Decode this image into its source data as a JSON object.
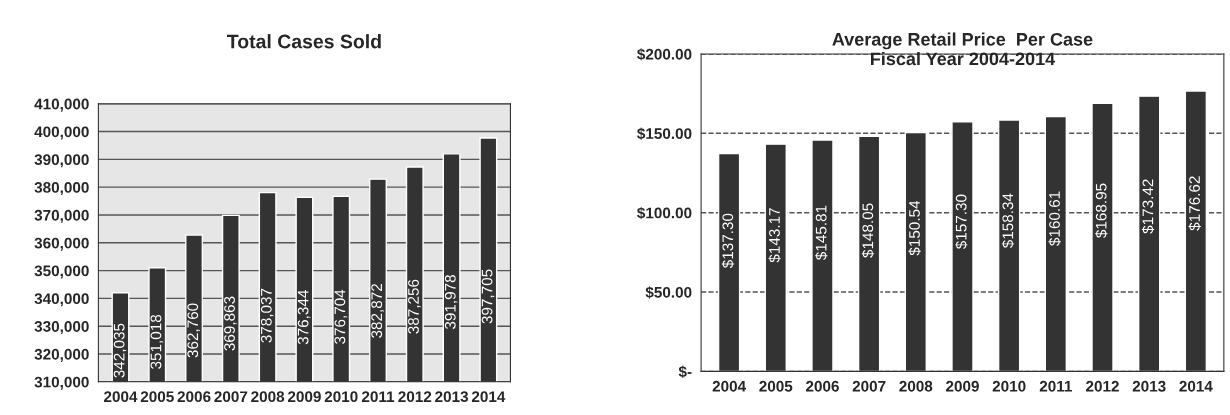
{
  "chart_data": [
    {
      "type": "bar",
      "title": "Total Cases Sold",
      "categories": [
        "2004",
        "2005",
        "2006",
        "2007",
        "2008",
        "2009",
        "2010",
        "2011",
        "2012",
        "2013",
        "2014"
      ],
      "values": [
        342035,
        351018,
        362760,
        369863,
        378037,
        376344,
        376704,
        382872,
        387256,
        391978,
        397705
      ],
      "value_labels": [
        "342,035",
        "351,018",
        "362,760",
        "369,863",
        "378,037",
        "376,344",
        "376,704",
        "382,872",
        "387,256",
        "391,978",
        "397,705"
      ],
      "color": "#333333",
      "ylim": [
        310000,
        410000
      ],
      "yticks": [
        {
          "value": 310000,
          "label": "310,000"
        },
        {
          "value": 320000,
          "label": "320,000"
        },
        {
          "value": 330000,
          "label": "330,000"
        },
        {
          "value": 340000,
          "label": "340,000"
        },
        {
          "value": 350000,
          "label": "350,000"
        },
        {
          "value": 360000,
          "label": "360,000"
        },
        {
          "value": 370000,
          "label": "370,000"
        },
        {
          "value": 380000,
          "label": "380,000"
        },
        {
          "value": 390000,
          "label": "390,000"
        },
        {
          "value": 400000,
          "label": "400,000"
        },
        {
          "value": 410000,
          "label": "410,000"
        }
      ],
      "grid": "y",
      "line_style": "solid"
    },
    {
      "type": "bar",
      "title": "Average Retail Price  Per Case",
      "subtitle": "Fiscal Year 2004-2014",
      "categories": [
        "2004",
        "2005",
        "2006",
        "2007",
        "2008",
        "2009",
        "2010",
        "2011",
        "2012",
        "2013",
        "2014"
      ],
      "values": [
        137.3,
        143.17,
        145.81,
        148.05,
        150.54,
        157.3,
        158.34,
        160.61,
        168.95,
        173.42,
        176.62
      ],
      "value_labels": [
        "$137.30",
        "$143.17",
        "$145.81",
        "$148.05",
        "$150.54",
        "$157.30",
        "$158.34",
        "$160.61",
        "$168.95",
        "$173.42",
        "$176.62"
      ],
      "color": "#333333",
      "ylim": [
        0,
        200
      ],
      "yticks": [
        {
          "value": 0,
          "label": "$-"
        },
        {
          "value": 50,
          "label": "$50.00"
        },
        {
          "value": 100,
          "label": "$100.00"
        },
        {
          "value": 150,
          "label": "$150.00"
        },
        {
          "value": 200,
          "label": "$200.00"
        }
      ],
      "grid": "y",
      "line_style": "dashed"
    }
  ]
}
